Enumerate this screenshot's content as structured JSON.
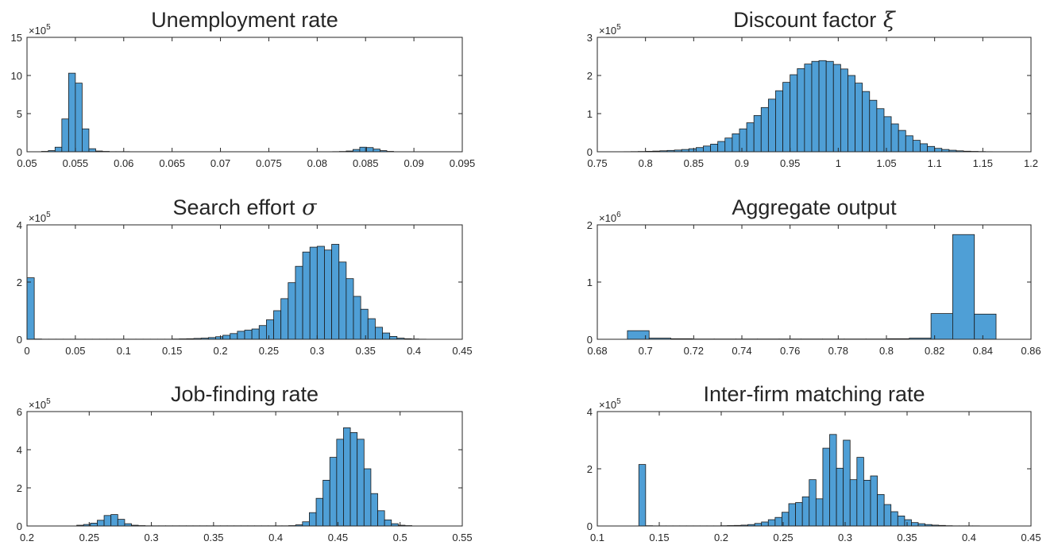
{
  "chart_data": [
    {
      "type": "bar",
      "title": "Unemployment rate",
      "title_symbol": "",
      "xlim": [
        0.05,
        0.095
      ],
      "ylim": [
        0,
        15
      ],
      "xticks": [
        0.05,
        0.055,
        0.06,
        0.065,
        0.07,
        0.075,
        0.08,
        0.085,
        0.09,
        0.095
      ],
      "xtick_labels": [
        "0.05",
        "0.055",
        "0.06",
        "0.065",
        "0.07",
        "0.075",
        "0.08",
        "0.085",
        "0.09",
        "0.095"
      ],
      "yticks": [
        0,
        5,
        10,
        15
      ],
      "ytick_labels": [
        "0",
        "5",
        "10",
        "15"
      ],
      "exponent_base": "×10",
      "exponent": "5",
      "bin_edges_start": 0.0515,
      "bin_width": 0.0007,
      "counts": [
        0.05,
        0.15,
        0.6,
        4.3,
        10.3,
        9.0,
        3.0,
        0.4,
        0.1,
        0.05,
        0.02,
        0.02,
        0.02,
        0.01,
        0.01,
        0.01,
        0.01,
        0.01,
        0.01,
        0.01,
        0.01,
        0.01,
        0.01,
        0.01,
        0.01,
        0.01,
        0.01,
        0.01,
        0.01,
        0.01,
        0.01,
        0.01,
        0.01,
        0.01,
        0.01,
        0.01,
        0.01,
        0.01,
        0.01,
        0.01,
        0.01,
        0.01,
        0.01,
        0.02,
        0.04,
        0.1,
        0.3,
        0.6,
        0.55,
        0.35,
        0.15,
        0.05
      ]
    },
    {
      "type": "bar",
      "title": "Discount factor",
      "title_symbol": "ξ",
      "xlim": [
        0.75,
        1.2
      ],
      "ylim": [
        0,
        3
      ],
      "xticks": [
        0.75,
        0.8,
        0.85,
        0.9,
        0.95,
        1,
        1.05,
        1.1,
        1.15,
        1.2
      ],
      "xtick_labels": [
        "0.75",
        "0.8",
        "0.85",
        "0.9",
        "0.95",
        "1",
        "1.05",
        "1.1",
        "1.15",
        "1.2"
      ],
      "yticks": [
        0,
        1,
        2,
        3
      ],
      "ytick_labels": [
        "0",
        "1",
        "2",
        "3"
      ],
      "exponent_base": "×10",
      "exponent": "5",
      "bin_edges_start": 0.77,
      "bin_width": 0.0075,
      "counts": [
        0.002,
        0.003,
        0.005,
        0.008,
        0.012,
        0.018,
        0.026,
        0.035,
        0.045,
        0.06,
        0.08,
        0.11,
        0.15,
        0.2,
        0.27,
        0.36,
        0.47,
        0.6,
        0.76,
        0.95,
        1.16,
        1.38,
        1.6,
        1.82,
        2.02,
        2.18,
        2.3,
        2.37,
        2.39,
        2.37,
        2.29,
        2.17,
        2.0,
        1.8,
        1.58,
        1.35,
        1.13,
        0.92,
        0.73,
        0.56,
        0.42,
        0.3,
        0.21,
        0.14,
        0.09,
        0.06,
        0.04,
        0.025,
        0.015,
        0.01,
        0.006,
        0.003
      ]
    },
    {
      "type": "bar",
      "title": "Search effort",
      "title_symbol": "σ",
      "xlim": [
        0,
        0.45
      ],
      "ylim": [
        0,
        4
      ],
      "xticks": [
        0,
        0.05,
        0.1,
        0.15,
        0.2,
        0.25,
        0.3,
        0.35,
        0.4,
        0.45
      ],
      "xtick_labels": [
        "0",
        "0.05",
        "0.1",
        "0.15",
        "0.2",
        "0.25",
        "0.3",
        "0.35",
        "0.4",
        "0.45"
      ],
      "yticks": [
        0,
        2,
        4
      ],
      "ytick_labels": [
        "0",
        "2",
        "4"
      ],
      "exponent_base": "×10",
      "exponent": "5",
      "bin_edges_start": 0.0,
      "bin_width": 0.0075,
      "counts": [
        2.15,
        0.01,
        0.005,
        0.005,
        0.005,
        0.005,
        0.005,
        0.005,
        0.005,
        0.005,
        0.005,
        0.005,
        0.005,
        0.005,
        0.005,
        0.005,
        0.005,
        0.005,
        0.005,
        0.005,
        0.01,
        0.015,
        0.02,
        0.03,
        0.04,
        0.06,
        0.09,
        0.14,
        0.2,
        0.28,
        0.32,
        0.36,
        0.48,
        0.68,
        1.0,
        1.42,
        1.98,
        2.55,
        3.05,
        3.22,
        3.25,
        3.12,
        3.32,
        2.7,
        2.12,
        1.5,
        1.05,
        0.72,
        0.42,
        0.22,
        0.1,
        0.04,
        0.02,
        0.01,
        0.005
      ]
    },
    {
      "type": "bar",
      "title": "Aggregate output",
      "title_symbol": "",
      "xlim": [
        0.68,
        0.86
      ],
      "ylim": [
        0,
        2
      ],
      "xticks": [
        0.68,
        0.7,
        0.72,
        0.74,
        0.76,
        0.78,
        0.8,
        0.82,
        0.84,
        0.86
      ],
      "xtick_labels": [
        "0.68",
        "0.7",
        "0.72",
        "0.74",
        "0.76",
        "0.78",
        "0.8",
        "0.82",
        "0.84",
        "0.86"
      ],
      "yticks": [
        0,
        1,
        2
      ],
      "ytick_labels": [
        "0",
        "1",
        "2"
      ],
      "exponent_base": "×10",
      "exponent": "6",
      "bin_edges_start": 0.6925,
      "bin_width": 0.009,
      "counts": [
        0.15,
        0.02,
        0.01,
        0.005,
        0.005,
        0.005,
        0.005,
        0.005,
        0.005,
        0.005,
        0.005,
        0.005,
        0.01,
        0.02,
        0.45,
        1.83,
        0.44
      ]
    },
    {
      "type": "bar",
      "title": "Job-finding rate",
      "title_symbol": "",
      "xlim": [
        0.2,
        0.55
      ],
      "ylim": [
        0,
        6
      ],
      "xticks": [
        0.2,
        0.25,
        0.3,
        0.35,
        0.4,
        0.45,
        0.5,
        0.55
      ],
      "xtick_labels": [
        "0.2",
        "0.25",
        "0.3",
        "0.35",
        "0.4",
        "0.45",
        "0.5",
        "0.55"
      ],
      "yticks": [
        0,
        2,
        4,
        6
      ],
      "ytick_labels": [
        "0",
        "2",
        "4",
        "6"
      ],
      "exponent_base": "×10",
      "exponent": "5",
      "bin_edges_start": 0.24,
      "bin_width": 0.0055,
      "counts": [
        0.04,
        0.08,
        0.15,
        0.3,
        0.55,
        0.6,
        0.35,
        0.12,
        0.04,
        0.02,
        0.01,
        0.01,
        0.01,
        0.01,
        0.01,
        0.01,
        0.01,
        0.01,
        0.01,
        0.01,
        0.01,
        0.01,
        0.01,
        0.01,
        0.01,
        0.01,
        0.01,
        0.01,
        0.01,
        0.01,
        0.01,
        0.02,
        0.06,
        0.22,
        0.7,
        1.45,
        2.4,
        3.6,
        4.55,
        5.15,
        4.9,
        4.55,
        3.0,
        1.7,
        0.8,
        0.32,
        0.12,
        0.04,
        0.02
      ]
    },
    {
      "type": "bar",
      "title": "Inter-firm matching rate",
      "title_symbol": "",
      "xlim": [
        0.1,
        0.45
      ],
      "ylim": [
        0,
        4
      ],
      "xticks": [
        0.1,
        0.15,
        0.2,
        0.25,
        0.3,
        0.35,
        0.4,
        0.45
      ],
      "xtick_labels": [
        "0.1",
        "0.15",
        "0.2",
        "0.25",
        "0.3",
        "0.35",
        "0.4",
        "0.45"
      ],
      "yticks": [
        0,
        2,
        4
      ],
      "ytick_labels": [
        "0",
        "2",
        "4"
      ],
      "exponent_base": "×10",
      "exponent": "5",
      "bin_edges_start": 0.1335,
      "bin_width": 0.0055,
      "counts": [
        2.15,
        0.01,
        0.005,
        0.005,
        0.005,
        0.005,
        0.005,
        0.005,
        0.005,
        0.005,
        0.005,
        0.005,
        0.01,
        0.015,
        0.02,
        0.03,
        0.05,
        0.09,
        0.14,
        0.22,
        0.3,
        0.48,
        0.78,
        0.82,
        1.02,
        1.62,
        0.95,
        2.72,
        3.2,
        2.02,
        3.0,
        1.62,
        2.4,
        1.6,
        1.75,
        1.1,
        0.75,
        0.5,
        0.35,
        0.22,
        0.12,
        0.08,
        0.05,
        0.03,
        0.02,
        0.01,
        0.005,
        0.005,
        0.005,
        0.005
      ]
    }
  ]
}
